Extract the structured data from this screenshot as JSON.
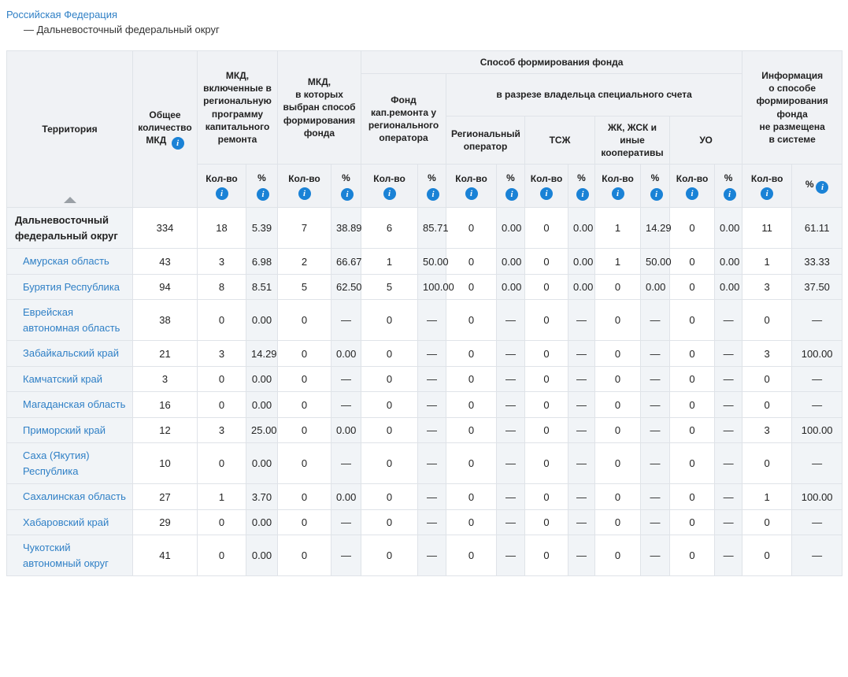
{
  "colors": {
    "border": "#dfe3e8",
    "header-bg": "#f0f2f5",
    "shade-bg": "#f1f4f7",
    "link-blue": "#3080c6",
    "info-blue": "#1a82d6",
    "arrow": "#9aa0a6"
  },
  "icons": {
    "info_glyph": "i"
  },
  "breadcrumb": {
    "root_label": "Российская Федерация",
    "current_label": "— Дальневосточный федеральный округ"
  },
  "table": {
    "header": {
      "territory": "Территория",
      "total_mkd": "Общее количество МКД",
      "included_in_program": "МКД,\nвключенные в\nрегиональную\nпрограмму\nкапитального\nремонта",
      "method_chosen": "МКД,\nв которых\nвыбран способ\nформирования\nфонда",
      "fund_formation_method": "Способ формирования фонда",
      "regional_operator_fund": "Фонд\nкап.ремонта у\nрегионального\nоператора",
      "special_account_owner": "в разрезе владельца специального счета",
      "regional_operator": "Региональный\nоператор",
      "tsj": "ТСЖ",
      "jk_jsk": "ЖК, ЖСК и иные\nкооперативы",
      "uo": "УО",
      "no_info": "Информация\nо способе\nформирования\nфонда\nне размещена\nв системе",
      "count_label": "Кол-во",
      "percent_label": "%"
    },
    "rows": [
      {
        "territory": "Дальневосточный федеральный округ",
        "type": "summary",
        "level": 0,
        "cells": [
          "334",
          "18",
          "5.39",
          "7",
          "38.89",
          "6",
          "85.71",
          "0",
          "0.00",
          "0",
          "0.00",
          "1",
          "14.29",
          "0",
          "0.00",
          "11",
          "61.11"
        ]
      },
      {
        "territory": "Амурская область",
        "type": "region",
        "level": 1,
        "cells": [
          "43",
          "3",
          "6.98",
          "2",
          "66.67",
          "1",
          "50.00",
          "0",
          "0.00",
          "0",
          "0.00",
          "1",
          "50.00",
          "0",
          "0.00",
          "1",
          "33.33"
        ]
      },
      {
        "territory": "Бурятия Республика",
        "type": "region",
        "level": 1,
        "cells": [
          "94",
          "8",
          "8.51",
          "5",
          "62.50",
          "5",
          "100.00",
          "0",
          "0.00",
          "0",
          "0.00",
          "0",
          "0.00",
          "0",
          "0.00",
          "3",
          "37.50"
        ]
      },
      {
        "territory": "Еврейская автономная область",
        "type": "region",
        "level": 1,
        "cells": [
          "38",
          "0",
          "0.00",
          "0",
          "—",
          "0",
          "—",
          "0",
          "—",
          "0",
          "—",
          "0",
          "—",
          "0",
          "—",
          "0",
          "—"
        ]
      },
      {
        "territory": "Забайкальский край",
        "type": "region",
        "level": 1,
        "cells": [
          "21",
          "3",
          "14.29",
          "0",
          "0.00",
          "0",
          "—",
          "0",
          "—",
          "0",
          "—",
          "0",
          "—",
          "0",
          "—",
          "3",
          "100.00"
        ]
      },
      {
        "territory": "Камчатский край",
        "type": "region",
        "level": 1,
        "cells": [
          "3",
          "0",
          "0.00",
          "0",
          "—",
          "0",
          "—",
          "0",
          "—",
          "0",
          "—",
          "0",
          "—",
          "0",
          "—",
          "0",
          "—"
        ]
      },
      {
        "territory": "Магаданская область",
        "type": "region",
        "level": 1,
        "cells": [
          "16",
          "0",
          "0.00",
          "0",
          "—",
          "0",
          "—",
          "0",
          "—",
          "0",
          "—",
          "0",
          "—",
          "0",
          "—",
          "0",
          "—"
        ]
      },
      {
        "territory": "Приморский край",
        "type": "region",
        "level": 1,
        "cells": [
          "12",
          "3",
          "25.00",
          "0",
          "0.00",
          "0",
          "—",
          "0",
          "—",
          "0",
          "—",
          "0",
          "—",
          "0",
          "—",
          "3",
          "100.00"
        ]
      },
      {
        "territory": "Саха (Якутия) Республика",
        "type": "region",
        "level": 1,
        "cells": [
          "10",
          "0",
          "0.00",
          "0",
          "—",
          "0",
          "—",
          "0",
          "—",
          "0",
          "—",
          "0",
          "—",
          "0",
          "—",
          "0",
          "—"
        ]
      },
      {
        "territory": "Сахалинская область",
        "type": "region",
        "level": 1,
        "cells": [
          "27",
          "1",
          "3.70",
          "0",
          "0.00",
          "0",
          "—",
          "0",
          "—",
          "0",
          "—",
          "0",
          "—",
          "0",
          "—",
          "1",
          "100.00"
        ]
      },
      {
        "territory": "Хабаровский край",
        "type": "region",
        "level": 1,
        "cells": [
          "29",
          "0",
          "0.00",
          "0",
          "—",
          "0",
          "—",
          "0",
          "—",
          "0",
          "—",
          "0",
          "—",
          "0",
          "—",
          "0",
          "—"
        ]
      },
      {
        "territory": "Чукотский автономный округ",
        "type": "region",
        "level": 1,
        "cells": [
          "41",
          "0",
          "0.00",
          "0",
          "—",
          "0",
          "—",
          "0",
          "—",
          "0",
          "—",
          "0",
          "—",
          "0",
          "—",
          "0",
          "—"
        ]
      }
    ]
  }
}
